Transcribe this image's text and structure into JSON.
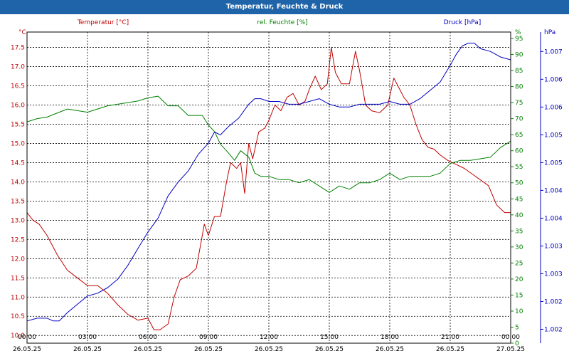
{
  "window": {
    "title": "Temperatur, Feuchte & Druck"
  },
  "chart_data": {
    "type": "line",
    "title": "Temperatur, Feuchte & Druck",
    "colors": {
      "temp": "#c00000",
      "hum": "#008000",
      "press": "#0000c0",
      "title_bg": "#1f63a8"
    },
    "x_ticks": [
      {
        "time": "00:00",
        "date": "26.05.25"
      },
      {
        "time": "03:00",
        "date": "26.05.25"
      },
      {
        "time": "06:00",
        "date": "26.05.25"
      },
      {
        "time": "09:00",
        "date": "26.05.25"
      },
      {
        "time": "12:00",
        "date": "26.05.25"
      },
      {
        "time": "15:00",
        "date": "26.05.25"
      },
      {
        "time": "18:00",
        "date": "26.05.25"
      },
      {
        "time": "21:00",
        "date": "26.05.25"
      },
      {
        "time": "00:00",
        "date": "27.05.25"
      }
    ],
    "xlim_hours": [
      0,
      24
    ],
    "axes": {
      "temp": {
        "unit": "°C",
        "min": 9.8,
        "max": 17.9,
        "ticks": [
          "10.0",
          "10.5",
          "11.0",
          "11.5",
          "12.0",
          "12.5",
          "13.0",
          "13.5",
          "14.0",
          "14.5",
          "15.0",
          "15.5",
          "16.0",
          "16.5",
          "17.0",
          "17.5"
        ]
      },
      "hum": {
        "unit": "%",
        "min": 0,
        "max": 97,
        "ticks": [
          "0",
          "5",
          "10",
          "15",
          "20",
          "25",
          "30",
          "35",
          "40",
          "45",
          "50",
          "55",
          "60",
          "65",
          "70",
          "75",
          "80",
          "85",
          "90",
          "95"
        ]
      },
      "press": {
        "unit": "hPa",
        "min": 1001.75,
        "max": 1007.35,
        "ticks": [
          "1.002",
          "1.002",
          "1.003",
          "1.003",
          "1.004",
          "1.004",
          "1.005",
          "1.005",
          "1.006",
          "1.006",
          "1.007"
        ]
      }
    },
    "series": [
      {
        "key": "temp",
        "name": "Temperatur [°C]",
        "x": [
          0,
          0.3,
          0.6,
          1,
          1.5,
          2,
          2.5,
          3,
          3.5,
          4,
          4.5,
          5,
          5.5,
          6,
          6.3,
          6.6,
          7,
          7.3,
          7.6,
          8,
          8.4,
          8.8,
          9,
          9.3,
          9.6,
          9.9,
          10.1,
          10.4,
          10.6,
          10.8,
          11,
          11.2,
          11.5,
          11.8,
          12,
          12.3,
          12.6,
          12.9,
          13.2,
          13.5,
          13.8,
          14,
          14.3,
          14.6,
          14.9,
          15.1,
          15.3,
          15.6,
          16,
          16.3,
          16.5,
          16.8,
          17.1,
          17.5,
          17.9,
          18.2,
          18.5,
          18.7,
          19,
          19.3,
          19.6,
          19.9,
          20.2,
          20.5,
          20.9,
          21.3,
          21.7,
          22.1,
          22.5,
          22.9,
          23.3,
          23.7,
          24
        ],
        "values": [
          13.2,
          13.0,
          12.9,
          12.6,
          12.1,
          11.7,
          11.5,
          11.3,
          11.3,
          11.1,
          10.8,
          10.55,
          10.4,
          10.45,
          10.15,
          10.15,
          10.3,
          11.0,
          11.45,
          11.55,
          11.75,
          12.9,
          12.6,
          13.1,
          13.1,
          14.0,
          14.5,
          14.35,
          14.5,
          13.7,
          15.0,
          14.6,
          15.3,
          15.4,
          15.6,
          16.0,
          15.85,
          16.2,
          16.3,
          16.0,
          16.1,
          16.4,
          16.75,
          16.4,
          16.55,
          17.5,
          16.85,
          16.55,
          16.55,
          17.4,
          16.9,
          16.0,
          15.85,
          15.8,
          16.0,
          16.7,
          16.4,
          16.2,
          16.0,
          15.5,
          15.1,
          14.9,
          14.85,
          14.7,
          14.55,
          14.45,
          14.35,
          14.2,
          14.05,
          13.9,
          13.4,
          13.2,
          13.2
        ]
      },
      {
        "key": "hum",
        "name": "rel. Feuchte [%]",
        "x": [
          0,
          0.5,
          1,
          2,
          3,
          4,
          5,
          5.5,
          6,
          6.5,
          7,
          7.5,
          8,
          8.3,
          8.7,
          9,
          9.3,
          9.6,
          9.9,
          10.3,
          10.6,
          11,
          11.3,
          11.6,
          12,
          12.5,
          13,
          13.5,
          14,
          14.5,
          15,
          15.5,
          16,
          16.5,
          17,
          17.5,
          18,
          18.5,
          19,
          19.5,
          20,
          20.5,
          21,
          21.5,
          22,
          22.5,
          23,
          23.5,
          24
        ],
        "values": [
          69,
          70,
          70.5,
          73,
          72,
          74,
          75,
          75.5,
          76.5,
          77,
          74,
          74,
          71,
          71,
          71,
          68,
          66,
          62,
          60,
          57,
          60,
          58,
          53,
          52,
          52,
          51,
          51,
          50,
          51,
          49,
          47,
          49,
          48,
          50,
          50,
          51,
          53,
          51,
          52,
          52,
          52,
          53,
          56,
          57,
          57,
          57.5,
          58,
          61,
          63
        ]
      },
      {
        "key": "press",
        "name": "Druck [hPa]",
        "x": [
          0,
          0.5,
          1,
          1.3,
          1.6,
          2,
          2.5,
          3,
          3.5,
          4,
          4.5,
          5,
          5.5,
          6,
          6.5,
          7,
          7.5,
          8,
          8.5,
          9,
          9.3,
          9.6,
          10,
          10.5,
          11,
          11.3,
          11.6,
          12,
          12.5,
          13,
          13.5,
          14,
          14.5,
          15,
          15.5,
          16,
          16.5,
          17,
          17.5,
          18,
          18.5,
          19,
          19.5,
          20,
          20.5,
          21,
          21.3,
          21.6,
          21.9,
          22.2,
          22.5,
          23,
          23.5,
          24
        ],
        "values": [
          1002.15,
          1002.2,
          1002.2,
          1002.15,
          1002.15,
          1002.3,
          1002.45,
          1002.6,
          1002.65,
          1002.75,
          1002.9,
          1003.15,
          1003.45,
          1003.75,
          1004.0,
          1004.4,
          1004.65,
          1004.85,
          1005.15,
          1005.35,
          1005.55,
          1005.5,
          1005.65,
          1005.8,
          1006.05,
          1006.15,
          1006.15,
          1006.1,
          1006.1,
          1006.05,
          1006.05,
          1006.1,
          1006.15,
          1006.05,
          1006.0,
          1006.0,
          1006.05,
          1006.05,
          1006.05,
          1006.1,
          1006.05,
          1006.05,
          1006.15,
          1006.3,
          1006.45,
          1006.75,
          1006.95,
          1007.1,
          1007.15,
          1007.15,
          1007.05,
          1007.0,
          1006.9,
          1006.85
        ]
      }
    ]
  }
}
